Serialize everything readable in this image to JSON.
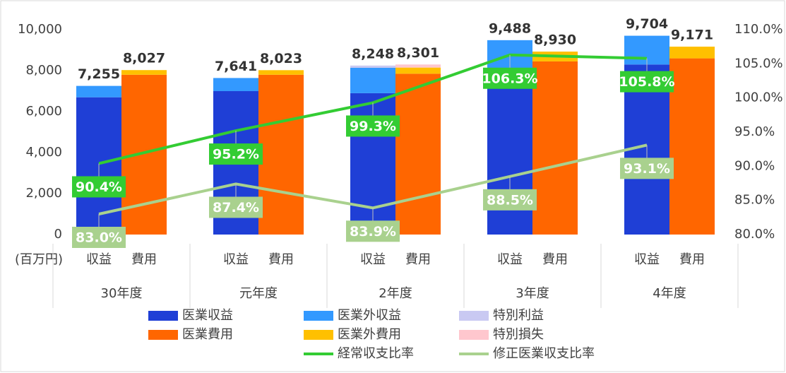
{
  "chart_data": {
    "type": "bar",
    "unit_label": "(百万円)",
    "categories": [
      "30年度",
      "元年度",
      "2年度",
      "3年度",
      "4年度"
    ],
    "sub_categories": [
      "収益",
      "費用"
    ],
    "ylim": [
      0,
      10000
    ],
    "yticks": [
      0,
      {
        "value": 2000,
        "label": "2,000"
      },
      {
        "value": 4000,
        "label": "4,000"
      },
      {
        "value": 6000,
        "label": "6,000"
      },
      {
        "value": 8000,
        "label": "8,000"
      },
      {
        "value": 10000,
        "label": "10,000"
      }
    ],
    "y2lim": [
      80,
      110
    ],
    "y2ticks": [
      {
        "value": 80,
        "label": "80.0%"
      },
      {
        "value": 85,
        "label": "85.0%"
      },
      {
        "value": 90,
        "label": "90.0%"
      },
      {
        "value": 95,
        "label": "95.0%"
      },
      {
        "value": 100,
        "label": "100.0%"
      },
      {
        "value": 105,
        "label": "105.0%"
      },
      {
        "value": 110,
        "label": "110.0%"
      }
    ],
    "series": [
      {
        "name": "医業収益",
        "type": "bar",
        "group": 0,
        "color": "#1f3fd6",
        "values": [
          6700,
          7000,
          6900,
          7800,
          8300
        ]
      },
      {
        "name": "医業外収益",
        "type": "bar",
        "group": 0,
        "color": "#3399ff",
        "values": [
          555,
          641,
          1238,
          1688,
          1404
        ]
      },
      {
        "name": "特別利益",
        "type": "bar",
        "group": 0,
        "color": "#c9c9f2",
        "values": [
          0,
          0,
          110,
          0,
          0
        ]
      },
      {
        "name": "医業費用",
        "type": "bar",
        "group": 1,
        "color": "#ff6600",
        "values": [
          7800,
          7800,
          7850,
          8450,
          8600
        ]
      },
      {
        "name": "医業外費用",
        "type": "bar",
        "group": 1,
        "color": "#ffc000",
        "values": [
          227,
          223,
          300,
          480,
          571
        ]
      },
      {
        "name": "特別損失",
        "type": "bar",
        "group": 1,
        "color": "#ffc7ce",
        "values": [
          0,
          0,
          151,
          0,
          0
        ]
      },
      {
        "name": "経常収支比率",
        "type": "line",
        "axis": "y2",
        "color": "#33cc33",
        "values": [
          90.4,
          95.2,
          99.3,
          106.3,
          105.8
        ],
        "value_labels": [
          "90.4%",
          "95.2%",
          "99.3%",
          "106.3%",
          "105.8%"
        ]
      },
      {
        "name": "修正医業収支比率",
        "type": "line",
        "axis": "y2",
        "color": "#a9d18e",
        "values": [
          83.0,
          87.4,
          83.9,
          88.5,
          93.1
        ],
        "value_labels": [
          "83.0%",
          "87.4%",
          "83.9%",
          "88.5%",
          "93.1%"
        ]
      }
    ],
    "totals": [
      {
        "values": [
          7255,
          7641,
          8248,
          9488,
          9704
        ],
        "value_labels": [
          "7,255",
          "7,641",
          "8,248",
          "9,488",
          "9,704"
        ]
      },
      {
        "values": [
          8027,
          8023,
          8301,
          8930,
          9171
        ],
        "value_labels": [
          "8,027",
          "8,023",
          "8,301",
          "8,930",
          "9,171"
        ]
      }
    ]
  }
}
